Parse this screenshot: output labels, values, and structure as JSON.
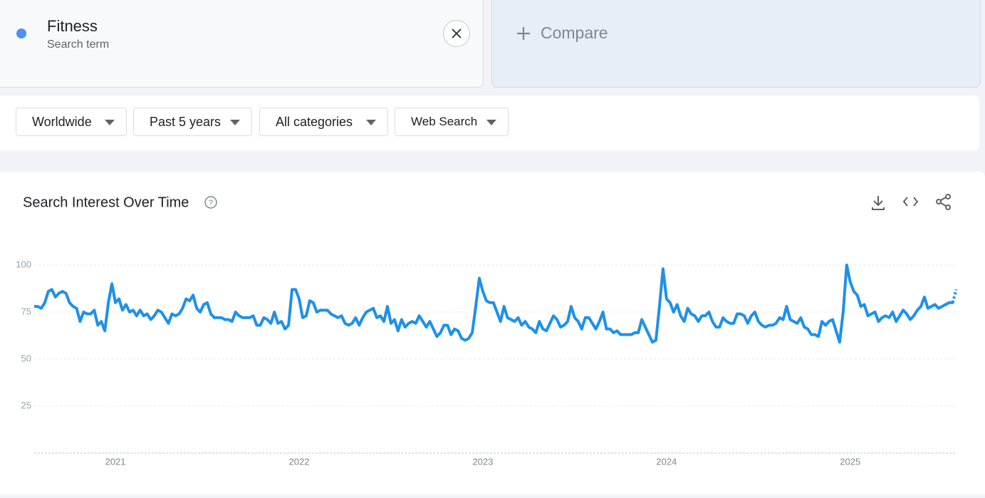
{
  "term": {
    "name": "Fitness",
    "label": "Search term"
  },
  "compare": "Compare",
  "filters": [
    "Worldwide",
    "Past 5 years",
    "All categories",
    "Web Search"
  ],
  "chart_data": {
    "type": "line",
    "title": "Search Interest Over Time",
    "color": "#1e90ea",
    "ylim": [
      0,
      100
    ],
    "yticks": [
      25,
      50,
      75,
      100
    ],
    "grid": true,
    "categories": [
      null,
      null,
      null,
      null,
      null,
      null,
      null,
      null,
      null,
      null,
      null,
      null,
      null,
      null,
      null,
      null,
      null,
      null,
      null,
      null,
      null,
      null,
      null,
      "2021",
      null,
      null,
      null,
      null,
      null,
      null,
      null,
      null,
      null,
      null,
      null,
      null,
      null,
      null,
      null,
      null,
      null,
      null,
      null,
      null,
      null,
      null,
      null,
      null,
      null,
      null,
      null,
      null,
      null,
      null,
      null,
      null,
      null,
      null,
      null,
      null,
      null,
      null,
      null,
      null,
      null,
      null,
      null,
      null,
      null,
      null,
      null,
      null,
      null,
      null,
      null,
      "2022",
      null,
      null,
      null,
      null,
      null,
      null,
      null,
      null,
      null,
      null,
      null,
      null,
      null,
      null,
      null,
      null,
      null,
      null,
      null,
      null,
      null,
      null,
      null,
      null,
      null,
      null,
      null,
      null,
      null,
      null,
      null,
      null,
      null,
      null,
      null,
      null,
      null,
      null,
      null,
      null,
      null,
      null,
      null,
      null,
      null,
      null,
      null,
      null,
      null,
      null,
      null,
      "2023",
      null,
      null,
      null,
      null,
      null,
      null,
      null,
      null,
      null,
      null,
      null,
      null,
      null,
      null,
      null,
      null,
      null,
      null,
      null,
      null,
      null,
      null,
      null,
      null,
      null,
      null,
      null,
      null,
      null,
      null,
      null,
      null,
      null,
      null,
      null,
      null,
      null,
      null,
      null,
      null,
      null,
      null,
      null,
      null,
      null,
      null,
      null,
      null,
      null,
      null,
      null,
      "2024",
      null,
      null,
      null,
      null,
      null,
      null,
      null,
      null,
      null,
      null,
      null,
      null,
      null,
      null,
      null,
      null,
      null,
      null,
      null,
      null,
      null,
      null,
      null,
      null,
      null,
      null,
      null,
      null,
      null,
      null,
      null,
      null,
      null,
      null,
      null,
      null,
      null,
      null,
      null,
      null,
      null,
      null,
      null,
      null,
      null,
      null,
      null,
      null,
      null,
      null,
      null,
      "2025",
      null,
      null,
      null,
      null,
      null,
      null,
      null,
      null,
      null,
      null,
      null,
      null,
      null,
      null,
      null,
      null,
      null,
      null,
      null,
      null,
      null,
      null,
      null,
      null,
      null,
      null,
      null,
      null,
      null,
      null
    ],
    "values": [
      78,
      78,
      77,
      80,
      86,
      87,
      83,
      85,
      86,
      85,
      80,
      78,
      77,
      70,
      75,
      74,
      74,
      76,
      68,
      70,
      65,
      80,
      90,
      80,
      82,
      76,
      79,
      75,
      76,
      73,
      76,
      73,
      74,
      71,
      73,
      76,
      75,
      72,
      69,
      74,
      73,
      74,
      77,
      82,
      81,
      84,
      77,
      75,
      79,
      80,
      74,
      72,
      72,
      72,
      71,
      71,
      70,
      75,
      73,
      72,
      72,
      72,
      73,
      68,
      68,
      72,
      71,
      69,
      75,
      69,
      70,
      66,
      68,
      87,
      87,
      82,
      72,
      73,
      81,
      80,
      75,
      76,
      76,
      76,
      74,
      73,
      72,
      73,
      69,
      68,
      69,
      72,
      68,
      72,
      75,
      76,
      77,
      72,
      73,
      70,
      78,
      69,
      71,
      65,
      71,
      67,
      69,
      70,
      69,
      73,
      70,
      67,
      70,
      66,
      62,
      64,
      68,
      68,
      63,
      66,
      65,
      61,
      60,
      61,
      64,
      78,
      93,
      86,
      81,
      80,
      80,
      75,
      70,
      78,
      72,
      71,
      70,
      72,
      68,
      70,
      67,
      66,
      64,
      70,
      66,
      65,
      69,
      73,
      71,
      67,
      68,
      70,
      78,
      72,
      70,
      66,
      72,
      72,
      69,
      66,
      70,
      75,
      66,
      66,
      64,
      65,
      63,
      63,
      63,
      63,
      64,
      64,
      71,
      67,
      63,
      59,
      60,
      78,
      98,
      82,
      80,
      75,
      79,
      73,
      70,
      77,
      74,
      73,
      70,
      73,
      73,
      75,
      70,
      67,
      67,
      72,
      70,
      69,
      69,
      74,
      74,
      73,
      69,
      73,
      75,
      70,
      68,
      67,
      68,
      68,
      69,
      72,
      71,
      78,
      71,
      70,
      69,
      72,
      67,
      66,
      63,
      63,
      62,
      70,
      68,
      70,
      71,
      65,
      59,
      75,
      100,
      91,
      86,
      84,
      78,
      79,
      73,
      74,
      75,
      70,
      72,
      73,
      72,
      75,
      70,
      73,
      76,
      74,
      71,
      73,
      76,
      78,
      83,
      77,
      78,
      79,
      77,
      78,
      79,
      80,
      80,
      87
    ]
  }
}
